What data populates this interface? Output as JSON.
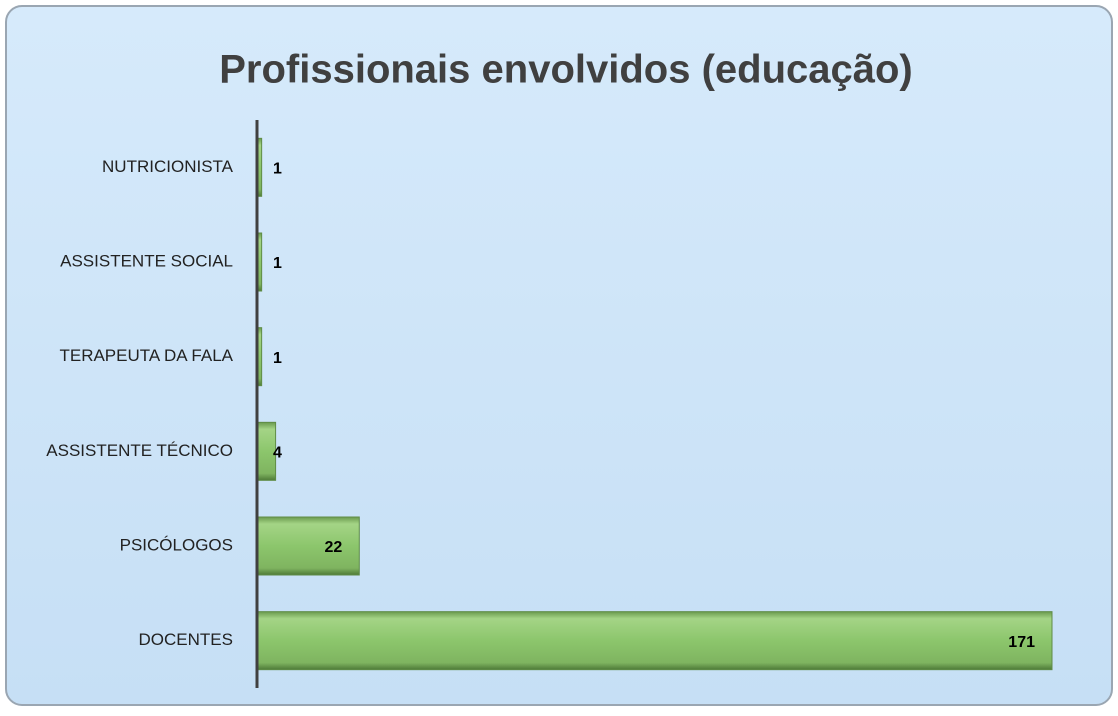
{
  "chart_data": {
    "type": "barh",
    "title": "Profissionais envolvidos (educação)",
    "categories": [
      "NUTRICIONISTA",
      "ASSISTENTE SOCIAL",
      "TERAPEUTA DA FALA",
      "ASSISTENTE TÉCNICO",
      "PSICÓLOGOS",
      "DOCENTES"
    ],
    "values": [
      1,
      1,
      1,
      4,
      22,
      171
    ],
    "color": "#8cc66c"
  }
}
